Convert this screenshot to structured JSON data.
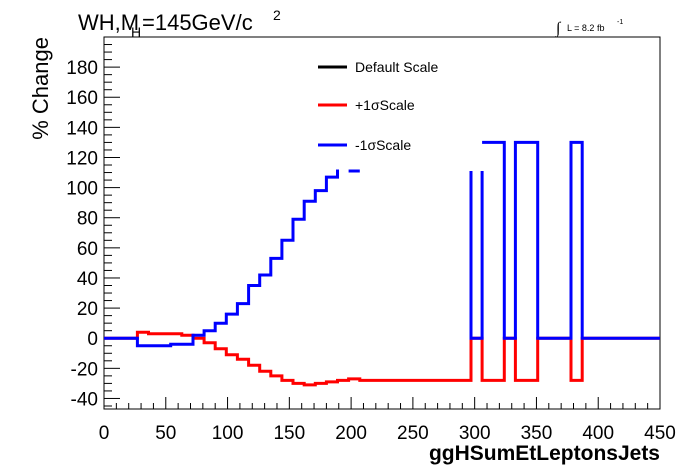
{
  "header": {
    "title_main": "WH,M",
    "title_sub": "H",
    "title_rest": "=145GeV/c",
    "title_sup": "2",
    "lumi_integral": "∫",
    "lumi_text": "L = 8.2 fb",
    "lumi_sup": "-1"
  },
  "chart_data": {
    "type": "line",
    "xlabel": "ggHSumEtLeptonsJets",
    "ylabel": "% Change",
    "xlim": [
      0,
      450
    ],
    "ylim": [
      -47,
      200
    ],
    "x_ticks": [
      0,
      50,
      100,
      150,
      200,
      250,
      300,
      350,
      400,
      450
    ],
    "y_ticks": [
      -40,
      -20,
      0,
      20,
      40,
      60,
      80,
      100,
      120,
      140,
      160,
      180
    ],
    "grid": false,
    "legend_position": "top-center",
    "series": [
      {
        "name": "Default Scale",
        "color": "#000000",
        "points": []
      },
      {
        "name": "+1σScale",
        "color": "#ff0000",
        "points": [
          [
            0,
            0
          ],
          [
            27,
            0
          ],
          [
            27,
            4
          ],
          [
            36,
            4
          ],
          [
            36,
            3
          ],
          [
            63,
            3
          ],
          [
            63,
            2
          ],
          [
            72,
            2
          ],
          [
            72,
            0
          ],
          [
            81,
            0
          ],
          [
            81,
            -3
          ],
          [
            90,
            -3
          ],
          [
            90,
            -7
          ],
          [
            99,
            -7
          ],
          [
            99,
            -11
          ],
          [
            108,
            -11
          ],
          [
            108,
            -14
          ],
          [
            117,
            -14
          ],
          [
            117,
            -18
          ],
          [
            126,
            -18
          ],
          [
            126,
            -22
          ],
          [
            135,
            -22
          ],
          [
            135,
            -25
          ],
          [
            144,
            -25
          ],
          [
            144,
            -28
          ],
          [
            153,
            -28
          ],
          [
            153,
            -30
          ],
          [
            162,
            -30
          ],
          [
            162,
            -31
          ],
          [
            171,
            -31
          ],
          [
            171,
            -30
          ],
          [
            180,
            -30
          ],
          [
            180,
            -29
          ],
          [
            189,
            -29
          ],
          [
            189,
            -28
          ],
          [
            198,
            -28
          ],
          [
            198,
            -27
          ],
          [
            207,
            -27
          ],
          [
            207,
            -28
          ],
          [
            297,
            -28
          ],
          [
            297,
            0
          ],
          [
            306,
            0
          ],
          [
            306,
            -28
          ],
          [
            324,
            -28
          ],
          [
            324,
            0
          ],
          [
            333,
            0
          ],
          [
            333,
            -28
          ],
          [
            351,
            -28
          ],
          [
            351,
            0
          ],
          [
            378,
            0
          ],
          [
            378,
            -28
          ],
          [
            387,
            -28
          ],
          [
            387,
            0
          ],
          [
            450,
            0
          ]
        ]
      },
      {
        "name": "-1σScale",
        "color": "#0000ff",
        "points": [
          [
            0,
            0
          ],
          [
            27,
            0
          ],
          [
            27,
            -5
          ],
          [
            54,
            -5
          ],
          [
            54,
            -4
          ],
          [
            72,
            -4
          ],
          [
            72,
            2
          ],
          [
            81,
            2
          ],
          [
            81,
            5
          ],
          [
            90,
            5
          ],
          [
            90,
            10
          ],
          [
            99,
            10
          ],
          [
            99,
            16
          ],
          [
            108,
            16
          ],
          [
            108,
            23
          ],
          [
            117,
            23
          ],
          [
            117,
            35
          ],
          [
            126,
            35
          ],
          [
            126,
            42
          ],
          [
            135,
            42
          ],
          [
            135,
            53
          ],
          [
            144,
            53
          ],
          [
            144,
            65
          ],
          [
            153,
            65
          ],
          [
            153,
            79
          ],
          [
            162,
            79
          ],
          [
            162,
            91
          ],
          [
            171,
            91
          ],
          [
            171,
            98
          ],
          [
            180,
            98
          ],
          [
            180,
            107
          ],
          [
            189,
            107
          ],
          [
            189,
            112
          ]
        ],
        "extra_segments": [
          [
            [
              198,
              111
            ],
            [
              207,
              111
            ]
          ],
          [
            [
              297,
              111
            ],
            [
              297,
              0
            ],
            [
              306,
              0
            ],
            [
              306,
              111
            ]
          ],
          [
            [
              306,
              130
            ],
            [
              324,
              130
            ],
            [
              324,
              0
            ],
            [
              333,
              0
            ],
            [
              333,
              130
            ],
            [
              351,
              130
            ],
            [
              351,
              0
            ],
            [
              378,
              0
            ],
            [
              378,
              130
            ],
            [
              387,
              130
            ],
            [
              387,
              0
            ],
            [
              450,
              0
            ]
          ]
        ]
      }
    ]
  }
}
